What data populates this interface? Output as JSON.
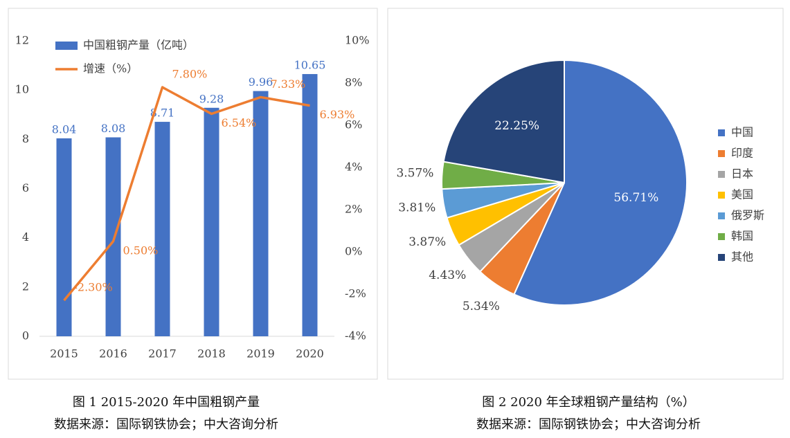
{
  "chart_data": [
    {
      "type": "bar_line",
      "caption": "图 1 2015-2020 年中国粗钢产量",
      "source": "数据来源：国际钢铁协会；中大咨询分析",
      "categories": [
        "2015",
        "2016",
        "2017",
        "2018",
        "2019",
        "2020"
      ],
      "series": [
        {
          "name": "中国粗钢产量（亿吨）",
          "color": "#4472c4",
          "type": "bar",
          "axis": "y",
          "values": [
            8.04,
            8.08,
            8.71,
            9.28,
            9.96,
            10.65
          ]
        },
        {
          "name": "增速（%）",
          "color": "#ed7d31",
          "type": "line",
          "axis": "y2",
          "values": [
            -2.3,
            0.5,
            7.8,
            6.54,
            7.33,
            6.93
          ],
          "value_labels": [
            "-2.30%",
            "0.50%",
            "7.80%",
            "6.54%",
            "7.33%",
            "6.93%"
          ]
        }
      ],
      "ylim": [
        0,
        12
      ],
      "yticks": [
        0,
        2,
        4,
        6,
        8,
        10,
        12
      ],
      "y2lim": [
        -4,
        10
      ],
      "y2ticks": [
        {
          "value": -4,
          "label": "-4%"
        },
        {
          "value": -2,
          "label": "-2%"
        },
        {
          "value": 0,
          "label": "0%"
        },
        {
          "value": 2,
          "label": "2%"
        },
        {
          "value": 4,
          "label": "4%"
        },
        {
          "value": 6,
          "label": "6%"
        },
        {
          "value": 8,
          "label": "8%"
        },
        {
          "value": 10,
          "label": "10%"
        }
      ],
      "legend": "top-left"
    },
    {
      "type": "pie",
      "caption": "图 2 2020 年全球粗钢产量结构（%）",
      "source": "数据来源：国际钢铁协会；中大咨询分析",
      "categories": [
        "中国",
        "印度",
        "日本",
        "美国",
        "俄罗斯",
        "韩国",
        "其他"
      ],
      "values": [
        56.71,
        5.34,
        4.43,
        3.87,
        3.81,
        3.57,
        22.25
      ],
      "value_labels": [
        "56.71%",
        "5.34%",
        "4.43%",
        "3.87%",
        "3.81%",
        "3.57%",
        "22.25%"
      ],
      "colors": [
        "#4472c4",
        "#ed7d31",
        "#a5a5a5",
        "#ffc000",
        "#5b9bd5",
        "#70ad47",
        "#264478"
      ],
      "legend": "right"
    }
  ]
}
